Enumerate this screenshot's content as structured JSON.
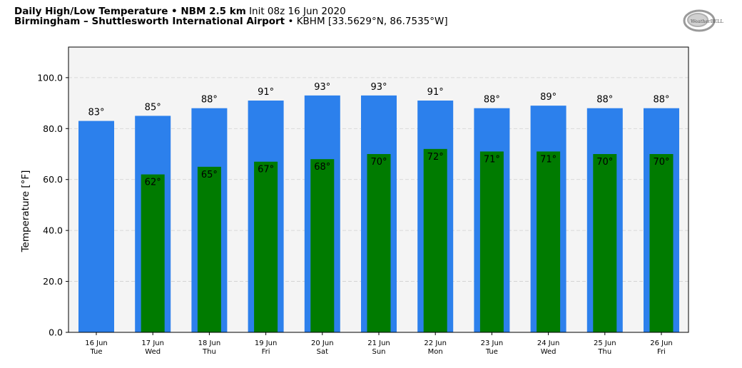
{
  "header": {
    "title_bold": "Daily High/Low Temperature • NBM 2.5 km",
    "init": "Init 08z 16 Jun 2020",
    "station_bold": "Birmingham – Shuttlesworth International Airport",
    "station_rest": "• KBHM [33.5629°N, 86.7535°W]"
  },
  "logo": {
    "text": "WeatherBELL"
  },
  "colors": {
    "high": "#2c80ec",
    "low": "#007b00",
    "plot_bg": "#f4f4f4",
    "grid": "#cfcfcf"
  },
  "chart_data": {
    "type": "bar",
    "title": "Daily High/Low Temperature • NBM 2.5 km",
    "xlabel": "",
    "ylabel": "Temperature [°F]",
    "ylim": [
      0,
      112
    ],
    "yticks": [
      "0.0",
      "20.0",
      "40.0",
      "60.0",
      "80.0",
      "100.0"
    ],
    "grid": true,
    "categories": [
      {
        "date": "16 Jun",
        "day": "Tue"
      },
      {
        "date": "17 Jun",
        "day": "Wed"
      },
      {
        "date": "18 Jun",
        "day": "Thu"
      },
      {
        "date": "19 Jun",
        "day": "Fri"
      },
      {
        "date": "20 Jun",
        "day": "Sat"
      },
      {
        "date": "21 Jun",
        "day": "Sun"
      },
      {
        "date": "22 Jun",
        "day": "Mon"
      },
      {
        "date": "23 Jun",
        "day": "Tue"
      },
      {
        "date": "24 Jun",
        "day": "Wed"
      },
      {
        "date": "25 Jun",
        "day": "Thu"
      },
      {
        "date": "26 Jun",
        "day": "Fri"
      }
    ],
    "series": [
      {
        "key": "high",
        "values": [
          83,
          85,
          88,
          91,
          93,
          93,
          91,
          88,
          89,
          88,
          88
        ]
      },
      {
        "key": "low",
        "values": [
          null,
          62,
          65,
          67,
          68,
          70,
          72,
          71,
          71,
          70,
          70
        ]
      }
    ]
  }
}
